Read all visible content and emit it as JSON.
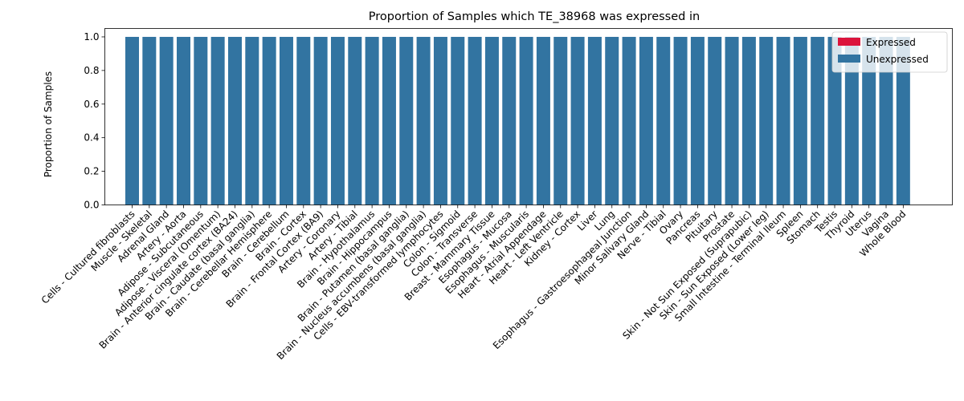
{
  "chart_data": {
    "type": "bar",
    "stacked": true,
    "title": "Proportion of Samples which TE_38968 was expressed in",
    "xlabel": "",
    "ylabel": "Proportion of Samples",
    "ylim": [
      0,
      1.05
    ],
    "yticks": [
      "0.0",
      "0.2",
      "0.4",
      "0.6",
      "0.8",
      "1.0"
    ],
    "grid": false,
    "legend_position": "top-right",
    "categories": [
      "Cells - Cultured fibroblasts",
      "Muscle - Skeletal",
      "Adrenal Gland",
      "Artery - Aorta",
      "Adipose - Subcutaneous",
      "Adipose - Visceral (Omentum)",
      "Brain - Anterior cingulate cortex (BA24)",
      "Brain - Caudate (basal ganglia)",
      "Brain - Cerebellar Hemisphere",
      "Brain - Cerebellum",
      "Brain - Cortex",
      "Brain - Frontal Cortex (BA9)",
      "Artery - Coronary",
      "Artery - Tibial",
      "Brain - Hypothalamus",
      "Brain - Hippocampus",
      "Brain - Putamen (basal ganglia)",
      "Brain - Nucleus accumbens (basal ganglia)",
      "Cells - EBV-transformed lymphocytes",
      "Colon - Sigmoid",
      "Colon - Transverse",
      "Breast - Mammary Tissue",
      "Esophagus - Mucosa",
      "Esophagus - Muscularis",
      "Heart - Atrial Appendage",
      "Heart - Left Ventricle",
      "Kidney - Cortex",
      "Liver",
      "Lung",
      "Esophagus - Gastroesophageal Junction",
      "Minor Salivary Gland",
      "Nerve - Tibial",
      "Ovary",
      "Pancreas",
      "Pituitary",
      "Prostate",
      "Skin - Not Sun Exposed (Suprapubic)",
      "Skin - Sun Exposed (Lower leg)",
      "Small Intestine - Terminal Ileum",
      "Spleen",
      "Stomach",
      "Testis",
      "Thyroid",
      "Uterus",
      "Vagina",
      "Whole Blood"
    ],
    "series": [
      {
        "name": "Expressed",
        "color": "#dc143c",
        "values": [
          0,
          0,
          0,
          0,
          0,
          0,
          0,
          0,
          0,
          0,
          0,
          0,
          0,
          0,
          0,
          0,
          0,
          0,
          0,
          0,
          0,
          0,
          0,
          0,
          0,
          0,
          0,
          0,
          0,
          0,
          0,
          0,
          0,
          0,
          0,
          0,
          0,
          0,
          0,
          0,
          0,
          0,
          0,
          0,
          0,
          0
        ]
      },
      {
        "name": "Unexpressed",
        "color": "#3274a1",
        "values": [
          1,
          1,
          1,
          1,
          1,
          1,
          1,
          1,
          1,
          1,
          1,
          1,
          1,
          1,
          1,
          1,
          1,
          1,
          1,
          1,
          1,
          1,
          1,
          1,
          1,
          1,
          1,
          1,
          1,
          1,
          1,
          1,
          1,
          1,
          1,
          1,
          1,
          1,
          1,
          1,
          1,
          1,
          1,
          1,
          1,
          1
        ]
      }
    ]
  }
}
